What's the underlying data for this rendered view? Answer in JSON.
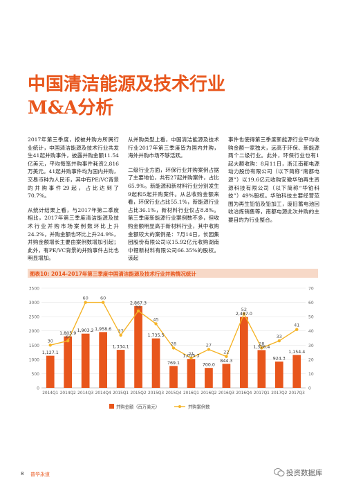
{
  "title_line1": "中国清洁能源及技术行业",
  "title_line2": "M&A分析",
  "columns": [
    [
      "2017年第三季度，按被并购方所属行业统计，中国清洁能源及技术行业共发生41起并购事件，披露并购金额11.54亿美元，平均每笔并购事件耗资2,816万美元。41起并购事件均为国内并购，交易币种为人民币，其中有PE/VC背景的并购事件29起，占比达到了70.7%。",
      "从统计结果上看，与2017年第二季度相比，2017年第三季度清洁能源及技术行业并购市场案例数环比上升24.2%，并购金额也环比上升24.9%，并购金额增长主要由案例数增加引起；此外，有PE/VC背景的并购事件占比也明显增加。"
    ],
    [
      "从并购类型上看，中国清洁能源及技术行业2017年第三季度皆为国内并购，海外并购市场不够活跃。",
      "二级行业方面，环保行业并购案例占据了主要地位，共有27起并购案件，占比65.9%。新能源和新材料行业分别发生9起和5起并购案件。从总收购金额来看，环保行业占比55.1%，新能源行业占比36.1%，新材料行业仅占8.8%。第三季度新能源行业案例数不多，但收购金额明显高于新材料行业，其中收购金额较大的案例是：7月14日，长园集团股份有限公司以15.92亿元收购湖南中锂新材料有限公司66.35%的股权。该起"
    ],
    [
      "事件也使得第三季度新能源行业平均收购金额一家独大，远高于环保、新能源两个二级行业。此外，环保行业也有1起大额收购：8月11日，浙江南都电源动力股份有限公司（以下简称“南都电源”）以19.6亿元收购安徽华铂再生资源科技有限公司（以下简称“华铂科技”）49%股权。华铂科技主要经营范围为再生铅铅及铅加工，废旧蓄电池回收冶炼销售等，南都电源此次并购的主要目的为行业整合。"
    ]
  ],
  "figure_title": "图表10: 2014-2017年第三季度中国清洁能源及技术行业并购情况统计",
  "chart_data": {
    "type": "bar",
    "categories": [
      "2014Q1",
      "2014Q2",
      "2014Q3",
      "2014Q4",
      "2015Q1",
      "2015Q2",
      "2015Q3",
      "2015Q4",
      "2016Q1",
      "2016Q2",
      "2016Q3",
      "2016Q4",
      "2017Q1",
      "2017Q2",
      "2017Q3"
    ],
    "series": [
      {
        "name": "并购金额（百万美元）",
        "type": "bar",
        "axis": "left",
        "color": "#e8561c",
        "values": [
          1127.1,
          1805.9,
          1903.2,
          1958.6,
          1334.1,
          2867.3,
          1735.5,
          769.1,
          1015.3,
          700.0,
          844.3,
          2487.0,
          1326.4,
          924.3,
          1154.4
        ],
        "labels": [
          "1,127.1",
          "1,805.9",
          "1,903.2",
          "1,958.6",
          "1,334.1",
          "2,867.3",
          "1,735.5",
          "769.1",
          "1,015.3",
          "700.0",
          "844.3",
          "2,487.0",
          "1,326.4",
          "924.3",
          "1,154.4"
        ]
      },
      {
        "name": "并购案例数",
        "type": "line",
        "axis": "right",
        "color": "#f5b428",
        "values": [
          30,
          33,
          60,
          60,
          37,
          54,
          45,
          28,
          21,
          27,
          22,
          52,
          28,
          33,
          41
        ]
      }
    ],
    "y_left": {
      "min": 0,
      "max": 3500,
      "ticks": [
        0,
        500,
        1000,
        1500,
        2000,
        2500,
        3000,
        3500
      ]
    },
    "y_right": {
      "min": 0,
      "max": 70,
      "ticks": [
        0,
        10,
        20,
        30,
        40,
        50,
        60,
        70
      ]
    },
    "legend_position": "bottom-center"
  },
  "footer": {
    "page": "8",
    "brand": "普华永道"
  },
  "watermark": "投资数据库"
}
